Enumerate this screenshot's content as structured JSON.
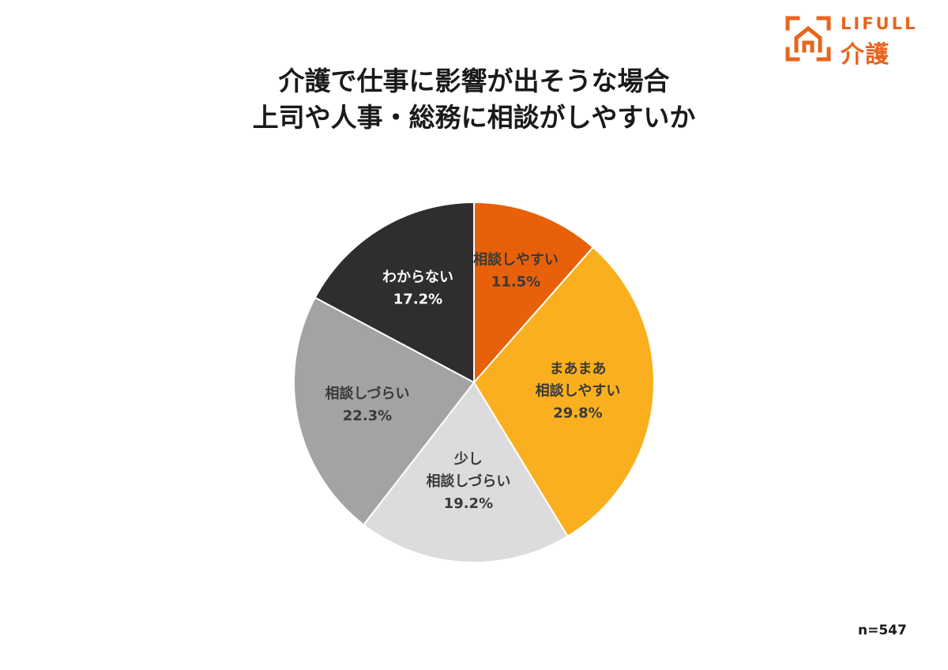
{
  "logo": {
    "text_en": "LIFULL",
    "text_jp": "介護",
    "color": "#e8641e"
  },
  "title": {
    "line1": "介護で仕事に影響が出そうな場合",
    "line2": "上司や人事・総務に相談がしやすいか"
  },
  "note": "n=547",
  "chart_data": {
    "type": "pie",
    "title": "介護で仕事に影響が出そうな場合 上司や人事・総務に相談がしやすいか",
    "start_angle": "12 o'clock",
    "direction": "clockwise",
    "slices": [
      {
        "label": [
          "相談しやすい"
        ],
        "value": 11.5,
        "value_label": "11.5%",
        "color": "#e8600a",
        "text_color": "#3a3a3a"
      },
      {
        "label": [
          "まあまあ",
          "相談しやすい"
        ],
        "value": 29.8,
        "value_label": "29.8%",
        "color": "#fab01e",
        "text_color": "#3a3a3a"
      },
      {
        "label": [
          "少し",
          "相談しづらい"
        ],
        "value": 19.2,
        "value_label": "19.2%",
        "color": "#dcdbdd",
        "text_color": "#3a3a3a"
      },
      {
        "label": [
          "相談しづらい"
        ],
        "value": 22.3,
        "value_label": "22.3%",
        "color": "#a3a2a5",
        "text_color": "#3a3a3a"
      },
      {
        "label": [
          "わからない"
        ],
        "value": 17.2,
        "value_label": "17.2%",
        "color": "#2f2d30",
        "text_color": "#ffffff"
      }
    ]
  }
}
